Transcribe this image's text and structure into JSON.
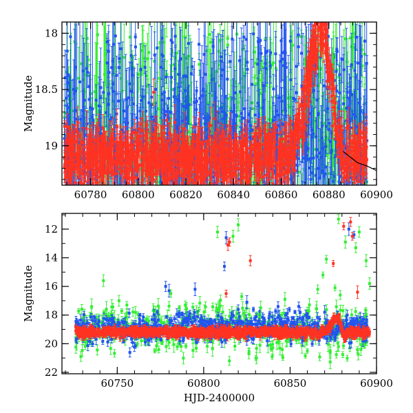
{
  "chart_data": [
    {
      "type": "scatter",
      "panel": "top",
      "xlabel": "",
      "ylabel": "Magnitude",
      "xlim": [
        60768,
        60900
      ],
      "ylim": [
        19.35,
        17.9
      ],
      "y_inverted": true,
      "x_ticks": [
        60780,
        60800,
        60820,
        60840,
        60860,
        60880,
        60900
      ],
      "y_ticks": [
        18,
        18.5,
        19
      ],
      "series": [
        {
          "color": "#2255ee",
          "points_description": "dense photometry with error bars, mostly saturating above the panel"
        },
        {
          "color": "#33ee33",
          "points_description": "dense photometry with error bars"
        },
        {
          "color": "#ff3322",
          "points_description": "dense photometry, baseline near 19.1 with brightening peak near 60877 at ~17.95"
        }
      ],
      "model_curve": {
        "color": "#000000",
        "x": [
          60886,
          60892,
          60896,
          60900
        ],
        "y": [
          19.05,
          19.15,
          19.18,
          19.22
        ]
      }
    },
    {
      "type": "scatter",
      "panel": "bottom",
      "xlabel": "HJD-2400000",
      "ylabel": "Magnitude",
      "xlim": [
        60718,
        60900
      ],
      "ylim": [
        22.1,
        10.9
      ],
      "y_inverted": true,
      "x_ticks": [
        60750,
        60800,
        60850,
        60900
      ],
      "y_ticks": [
        12,
        14,
        16,
        18,
        20,
        22
      ],
      "series": [
        {
          "color": "#2255ee",
          "outliers": [
            [
              60778,
              16.0
            ],
            [
              60780,
              16.3
            ],
            [
              60795,
              16.2
            ],
            [
              60812,
              14.6
            ],
            [
              60813,
              12.6
            ],
            [
              60820,
              17.6
            ],
            [
              60825,
              17.1
            ],
            [
              60855,
              17.4
            ],
            [
              60870,
              17.8
            ],
            [
              60884,
              12.0
            ],
            [
              60887,
              12.4
            ]
          ]
        },
        {
          "color": "#33ee33",
          "outliers": [
            [
              60742,
              15.6
            ],
            [
              60751,
              17.0
            ],
            [
              60781,
              16.5
            ],
            [
              60790,
              17.6
            ],
            [
              60808,
              12.2
            ],
            [
              60817,
              12.5
            ],
            [
              60820,
              11.7
            ],
            [
              60822,
              16.7
            ],
            [
              60833,
              17.5
            ],
            [
              60847,
              16.9
            ],
            [
              60866,
              16.2
            ],
            [
              60869,
              15.2
            ],
            [
              60871,
              14.1
            ],
            [
              60876,
              16.1
            ],
            [
              60878,
              11.3
            ],
            [
              60879,
              16.6
            ],
            [
              60882,
              12.9
            ],
            [
              60888,
              13.3
            ],
            [
              60890,
              12.2
            ],
            [
              60894,
              14.2
            ],
            [
              60896,
              15.8
            ]
          ]
        },
        {
          "color": "#ff3322",
          "outliers": [
            [
              60813,
              16.5
            ],
            [
              60814,
              13.1
            ],
            [
              60815,
              12.9
            ],
            [
              60827,
              14.2
            ],
            [
              60875,
              14.4
            ],
            [
              60881,
              11.8
            ],
            [
              60885,
              11.5
            ],
            [
              60886,
              12.5
            ],
            [
              60889,
              16.4
            ]
          ]
        }
      ],
      "baseline": {
        "x_start": 60726,
        "x_end": 60896,
        "mag": 19.2,
        "bump": {
          "center": 60877,
          "mag": 18.2
        },
        "dip": {
          "center": 60881,
          "mag": 19.8
        }
      }
    }
  ]
}
